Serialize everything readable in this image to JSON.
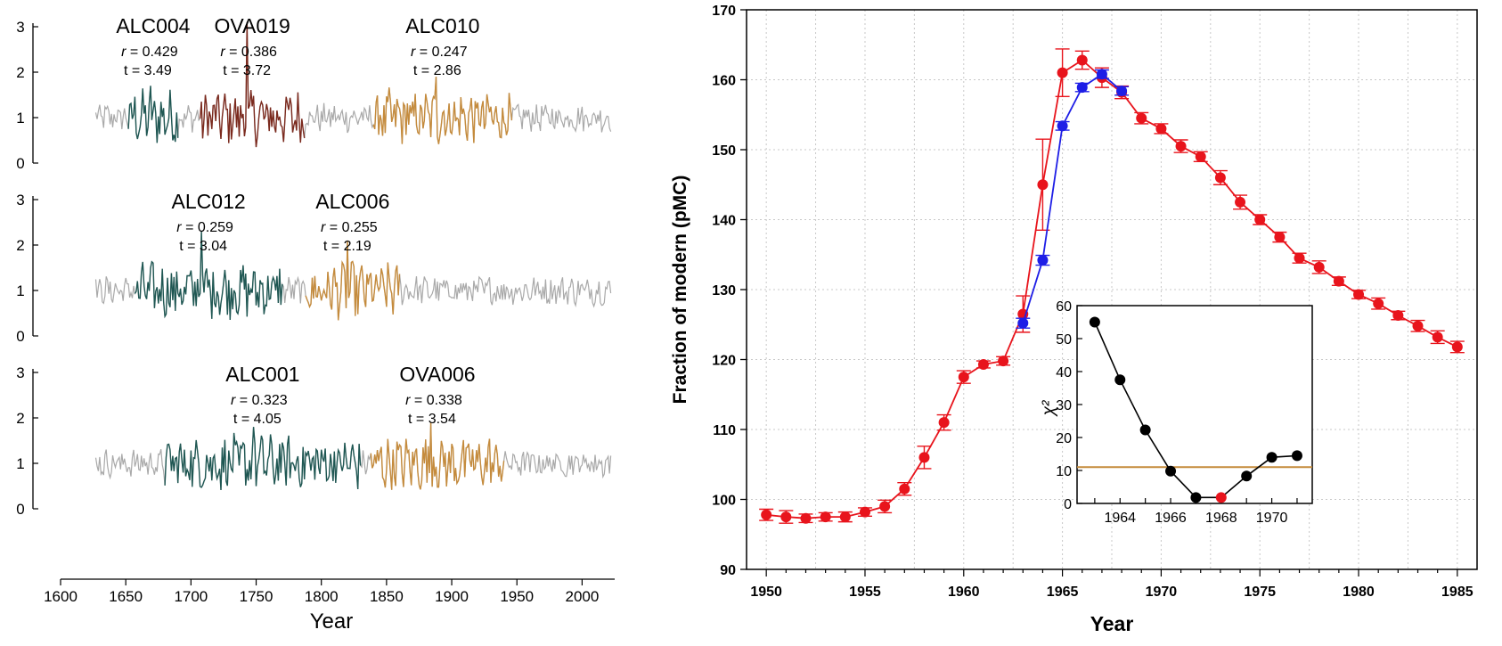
{
  "chart_data": [
    {
      "type": "line",
      "panel": "left",
      "xlabel": "Year",
      "xlim": [
        1600,
        2025
      ],
      "x_ticks": [
        1600,
        1650,
        1700,
        1750,
        1800,
        1850,
        1900,
        1950,
        2000
      ],
      "ylim": [
        0,
        3
      ],
      "y_ticks": [
        0,
        1,
        2,
        3
      ],
      "background_series_color": "#a9a9a9",
      "background_range": [
        1627,
        2022
      ],
      "rows": [
        {
          "segments": [
            {
              "name": "ALC004",
              "r_label": "r",
              "r_value": "= 0.429",
              "t_text": "t = 3.49",
              "start": 1652,
              "end": 1690,
              "color": "#1f5753",
              "peak": 1.7
            },
            {
              "name": "OVA019",
              "r_label": "r",
              "r_value": "= 0.386",
              "t_text": "t = 3.72",
              "start": 1707,
              "end": 1787,
              "color": "#7b2a1e",
              "peak": 3.1
            },
            {
              "name": "ALC010",
              "r_label": "r",
              "r_value": "= 0.247",
              "t_text": "t = 2.86",
              "start": 1840,
              "end": 1946,
              "color": "#c58b3c",
              "peak": 1.9
            }
          ]
        },
        {
          "segments": [
            {
              "name": "ALC012",
              "r_label": "r",
              "r_value": "= 0.259",
              "t_text": "t = 3.04",
              "start": 1657,
              "end": 1770,
              "color": "#1f5753",
              "peak": 2.3
            },
            {
              "name": "ALC006",
              "r_label": "r",
              "r_value": "= 0.255",
              "t_text": "t = 2.19",
              "start": 1788,
              "end": 1860,
              "color": "#c58b3c",
              "peak": 2.1
            }
          ]
        },
        {
          "segments": [
            {
              "name": "ALC001",
              "r_label": "r",
              "r_value": "= 0.323",
              "t_text": "t = 4.05",
              "start": 1680,
              "end": 1830,
              "color": "#1f5753",
              "peak": 1.8
            },
            {
              "name": "OVA006",
              "r_label": "r",
              "r_value": "= 0.338",
              "t_text": "t = 3.54",
              "start": 1838,
              "end": 1940,
              "color": "#c58b3c",
              "peak": 1.9
            }
          ]
        }
      ]
    },
    {
      "type": "line",
      "panel": "right",
      "xlabel": "Year",
      "ylabel": "Fraction of modern (pMC)",
      "xlim": [
        1949,
        1986
      ],
      "x_ticks": [
        1950,
        1955,
        1960,
        1965,
        1970,
        1975,
        1980,
        1985
      ],
      "ylim": [
        90,
        170
      ],
      "y_ticks": [
        90,
        100,
        110,
        120,
        130,
        140,
        150,
        160,
        170
      ],
      "grid": true,
      "series": [
        {
          "color": "#e8141c",
          "x": [
            1950,
            1951,
            1952,
            1953,
            1954,
            1955,
            1956,
            1957,
            1958,
            1959,
            1960,
            1961,
            1962,
            1963,
            1964,
            1965,
            1966,
            1967,
            1968,
            1969,
            1970,
            1971,
            1972,
            1973,
            1974,
            1975,
            1976,
            1977,
            1978,
            1979,
            1980,
            1981,
            1982,
            1983,
            1984,
            1985
          ],
          "y": [
            97.8,
            97.5,
            97.3,
            97.5,
            97.5,
            98.2,
            99.0,
            101.5,
            106.0,
            111.0,
            117.5,
            119.3,
            119.8,
            126.5,
            145.0,
            161.0,
            162.8,
            160.3,
            158.2,
            154.5,
            153.0,
            150.5,
            149.0,
            146.0,
            142.5,
            140.0,
            137.5,
            134.5,
            133.2,
            131.2,
            129.3,
            128.0,
            126.3,
            124.8,
            123.2,
            121.8
          ],
          "err": [
            0.8,
            0.9,
            0.6,
            0.6,
            0.7,
            0.6,
            0.9,
            0.9,
            1.6,
            1.1,
            0.9,
            0.5,
            0.6,
            2.6,
            6.5,
            3.4,
            1.3,
            1.4,
            0.9,
            0.8,
            0.7,
            0.9,
            0.7,
            1.0,
            1.0,
            0.7,
            0.7,
            0.7,
            0.9,
            0.6,
            0.6,
            0.8,
            0.6,
            0.8,
            0.9,
            0.8
          ]
        },
        {
          "color": "#1e1ee6",
          "x": [
            1963,
            1964,
            1965,
            1966,
            1967,
            1968
          ],
          "y": [
            125.2,
            134.2,
            153.4,
            158.9,
            160.8,
            158.4
          ],
          "err": [
            0.7,
            0.7,
            0.6,
            0.6,
            0.6,
            0.6
          ]
        }
      ],
      "inset": {
        "type": "line",
        "ylabel": "χ²",
        "xlim": [
          1962.3,
          1971.6
        ],
        "x_ticks": [
          1964,
          1966,
          1968,
          1970
        ],
        "ylim": [
          0,
          60
        ],
        "y_ticks": [
          0,
          10,
          20,
          30,
          40,
          50,
          60
        ],
        "threshold": 11,
        "threshold_color": "#c58b3c",
        "x": [
          1963,
          1964,
          1965,
          1966,
          1967,
          1968,
          1969,
          1970,
          1971
        ],
        "y": [
          55,
          37.5,
          22.3,
          9.8,
          1.8,
          1.8,
          8.3,
          14.0,
          14.5
        ],
        "highlight_x": 1968,
        "point_color": "#000000",
        "highlight_color": "#e8141c"
      }
    }
  ]
}
